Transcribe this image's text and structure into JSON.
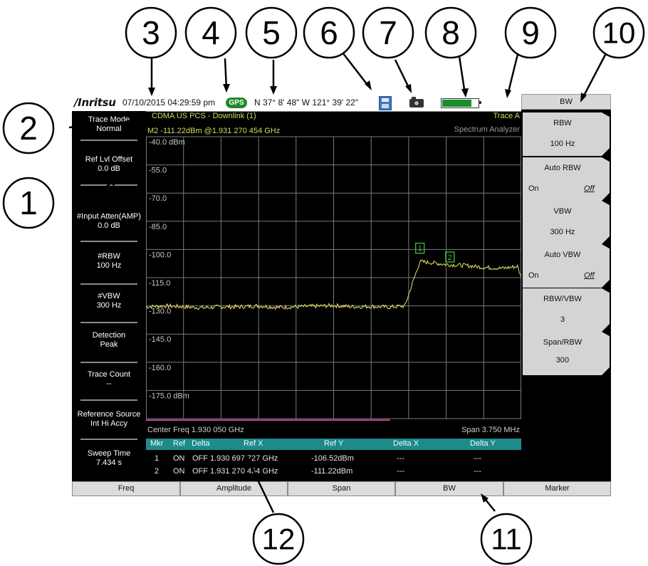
{
  "callouts": [
    "1",
    "2",
    "3",
    "4",
    "5",
    "6",
    "7",
    "8",
    "9",
    "10",
    "11",
    "12"
  ],
  "status_bar": {
    "logo": "/Inritsu",
    "datetime": "07/10/2015 04:29:59 pm",
    "gps_badge": "GPS",
    "coordinates": "N 37° 8' 48\" W 121° 39' 22\"",
    "battery_level": 0.82,
    "icons": [
      "save-icon",
      "camera-icon",
      "battery-icon"
    ]
  },
  "header": {
    "standard": "CDMA US PCS - Downlink (1)",
    "trace": "Trace A",
    "marker_readout": "M2 -111.22dBm @1.931 270 454 GHz",
    "mode": "Spectrum Analyzer"
  },
  "left_panel": [
    {
      "label": "Trace Mode",
      "value": "Normal"
    },
    {
      "label": "Ref Lvl Offset",
      "value": "0.0 dB"
    },
    {
      "label": "#Input Atten(AMP)",
      "value": "0.0 dB"
    },
    {
      "label": "#RBW",
      "value": "100 Hz"
    },
    {
      "label": "#VBW",
      "value": "300 Hz"
    },
    {
      "label": "Detection",
      "value": "Peak"
    },
    {
      "label": "Trace Count",
      "value": "--"
    },
    {
      "label": "Reference Source",
      "value": "Int Hi Accy"
    },
    {
      "label": "Sweep Time",
      "value": "7.434 s"
    }
  ],
  "softkeys": {
    "title": "BW",
    "items": [
      {
        "label": "RBW",
        "value": "100 Hz"
      },
      {
        "label": "Auto RBW",
        "on": "On",
        "off": "Off"
      },
      {
        "label": "VBW",
        "value": "300 Hz"
      },
      {
        "label": "Auto VBW",
        "on": "On",
        "off": "Off"
      },
      {
        "label": "RBW/VBW",
        "value": "3"
      },
      {
        "label": "Span/RBW",
        "value": "300"
      }
    ]
  },
  "plot": {
    "y_ticks": [
      "-40.0 dBm",
      "-55.0",
      "-70.0",
      "-85.0",
      "-100.0",
      "-115.0",
      "-130.0",
      "-145.0",
      "-160.0",
      "-175.0 dBm"
    ],
    "center_freq": "Center Freq 1.930 050 GHz",
    "span": "Span 3.750 MHz",
    "markers": [
      "1",
      "2"
    ],
    "colors": {
      "trace": "#e8e26a",
      "grid": "#7a7a7a",
      "marker": "#3fbf3f",
      "baseline": "#b04a9a"
    }
  },
  "chart_data": {
    "type": "line",
    "title": "CDMA US PCS - Downlink (1)",
    "xlabel": "Center Freq 1.930 050 GHz",
    "ylabel": "",
    "ylim": [
      -190,
      -40
    ],
    "y_unit": "dBm",
    "grid": true,
    "series": [
      {
        "name": "Trace A",
        "x_div": [
          0,
          0.5,
          1,
          1.5,
          2,
          2.5,
          3,
          3.5,
          4,
          4.5,
          5,
          5.5,
          6,
          6.5,
          6.9,
          7.1,
          7.3,
          7.6,
          8,
          8.5,
          9,
          9.5,
          9.9,
          10
        ],
        "values": [
          -130.5,
          -130,
          -130.5,
          -131,
          -130.5,
          -130.5,
          -130,
          -130.8,
          -130.5,
          -130.2,
          -129.8,
          -130.5,
          -130.3,
          -130.7,
          -130,
          -118,
          -106.5,
          -107,
          -108,
          -108.5,
          -109.5,
          -110,
          -109,
          -115
        ]
      }
    ],
    "markers": [
      {
        "id": "1",
        "freq": "1.930 697 727 GHz",
        "value": -106.52
      },
      {
        "id": "2",
        "freq": "1.931 270 454 GHz",
        "value": -111.22
      }
    ]
  },
  "marker_table": {
    "headers": [
      "Mkr",
      "Ref",
      "Delta",
      "Ref X",
      "Ref Y",
      "Delta X",
      "Delta Y"
    ],
    "rows": [
      [
        "1",
        "ON",
        "OFF",
        "1.930 697 727 GHz",
        "-106.52dBm",
        "---",
        "---"
      ],
      [
        "2",
        "ON",
        "OFF",
        "1.931 270 454 GHz",
        "-111.22dBm",
        "---",
        "---"
      ]
    ]
  },
  "bottom_tabs": [
    "Freq",
    "Amplitude",
    "Span",
    "BW",
    "Marker"
  ]
}
